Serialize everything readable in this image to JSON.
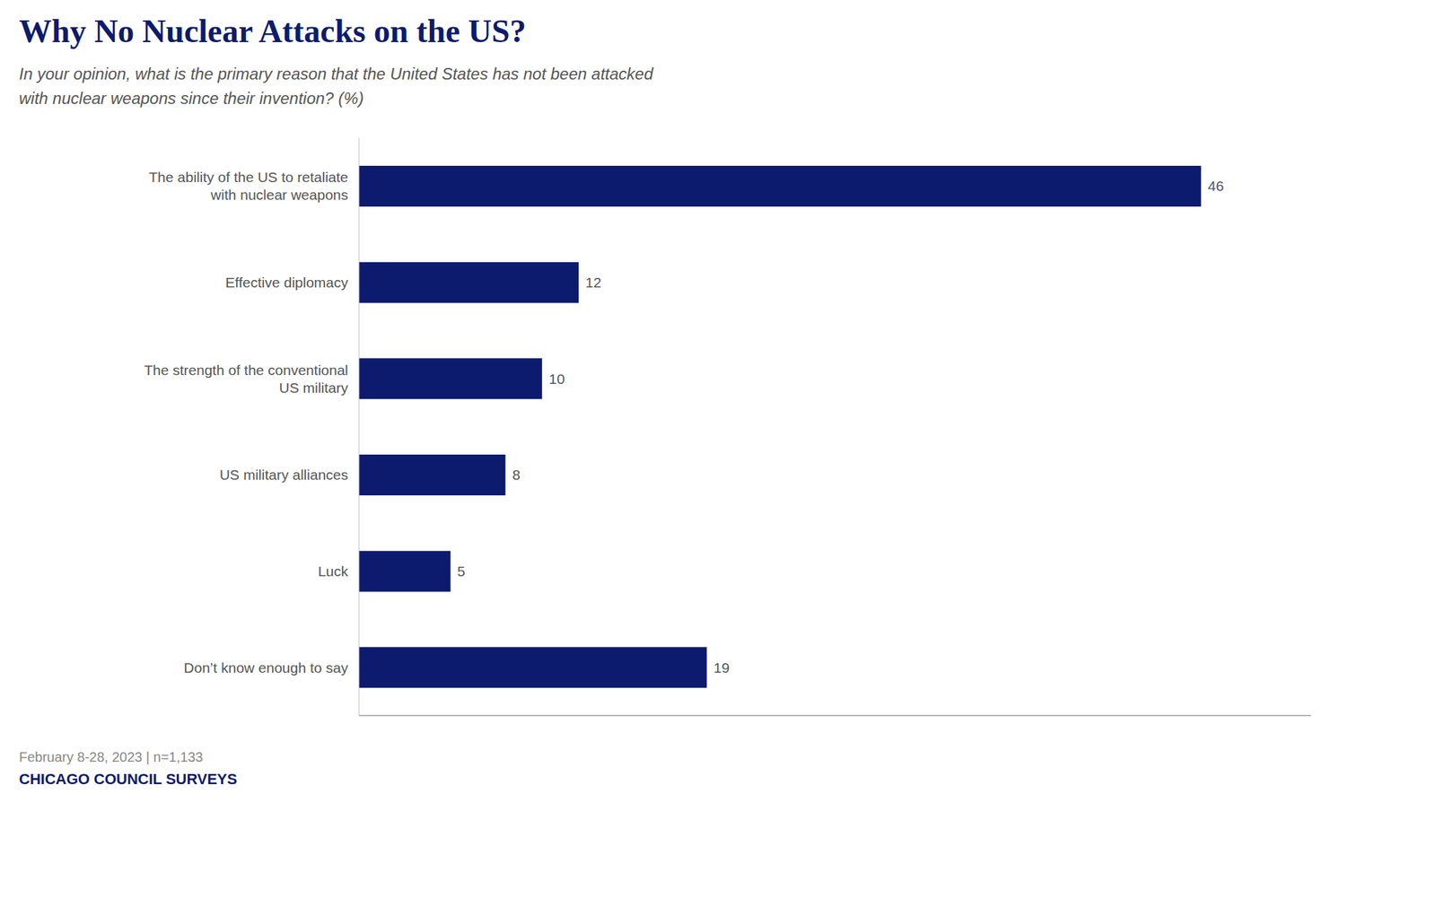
{
  "chart_data": {
    "type": "bar",
    "orientation": "horizontal",
    "title": "Why No Nuclear Attacks on the US?",
    "subtitle": "In your opinion, what is the primary reason that the United States has not been attacked\nwith nuclear weapons since their invention? (%)",
    "categories": [
      "The ability of the US to retaliate\nwith nuclear weapons",
      "Effective diplomacy",
      "The strength of the conventional\nUS military",
      "US military alliances",
      "Luck",
      "Don’t know enough to say"
    ],
    "values": [
      46,
      12,
      10,
      8,
      5,
      19
    ],
    "color": "#0d1b6e",
    "xlim": [
      0,
      52
    ],
    "grid": false,
    "data_labels": true,
    "tick_labels": "y",
    "annotations": [
      "February 8-28, 2023 | n=1,133",
      "CHICAGO COUNCIL SURVEYS"
    ]
  }
}
